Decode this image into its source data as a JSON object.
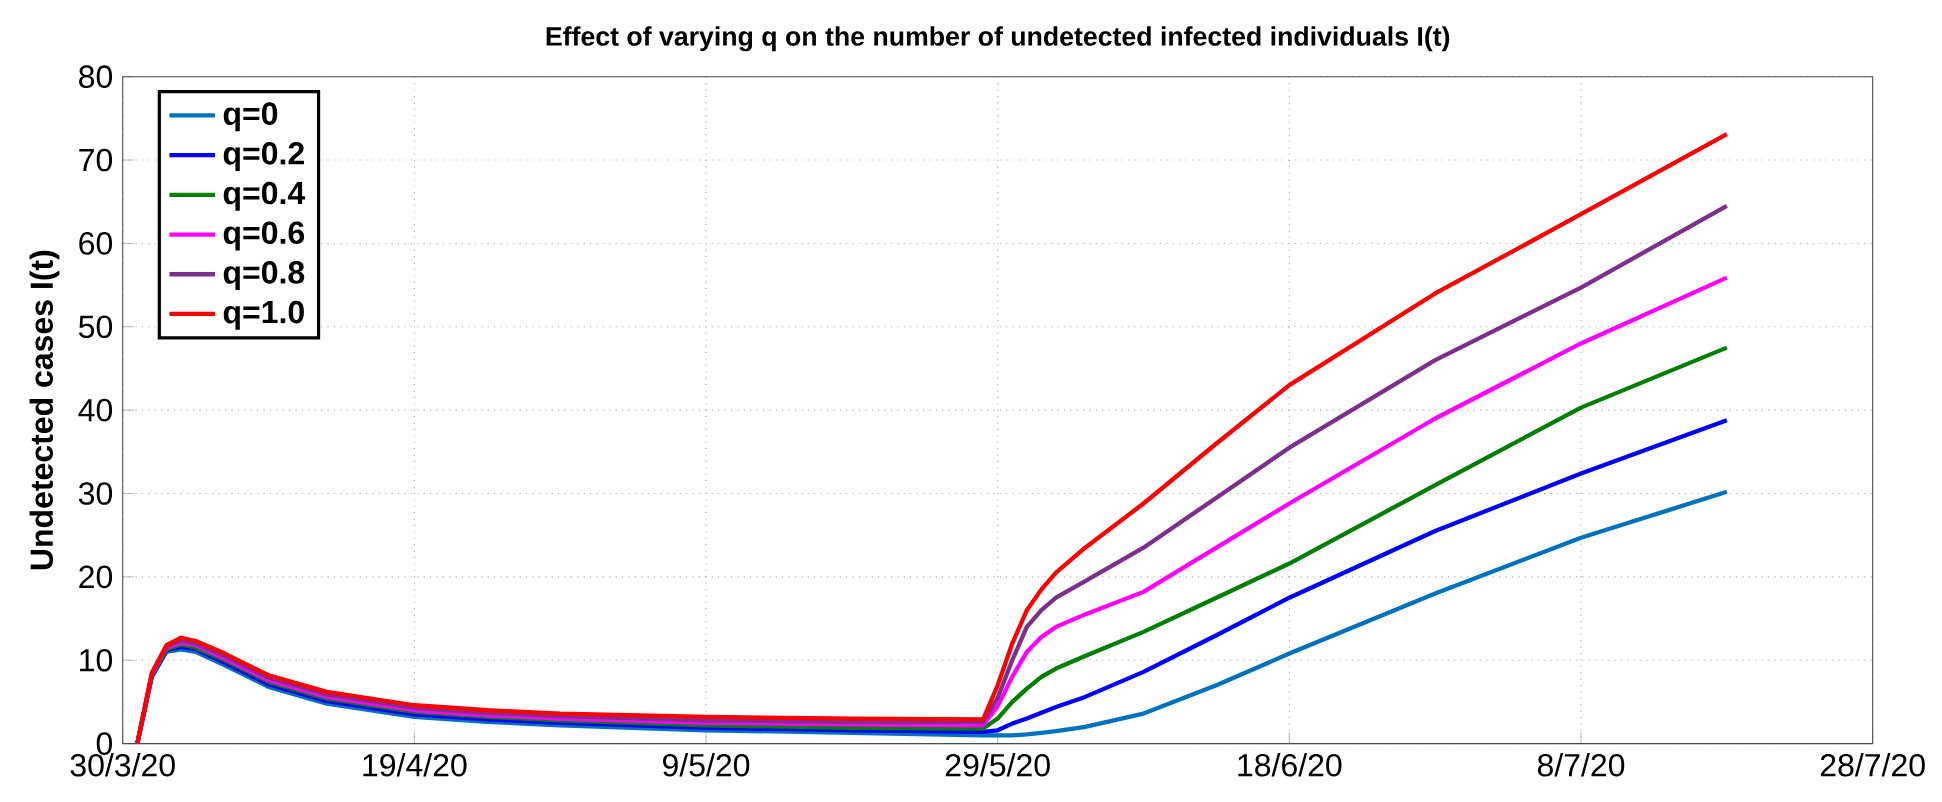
{
  "chart_data": {
    "type": "line",
    "title": "Effect of varying q on the number of undetected infected individuals I(t)",
    "ylabel": "Undetected cases I(t)",
    "x": [
      "2020-03-31",
      "2020-04-01",
      "2020-04-02",
      "2020-04-03",
      "2020-04-04",
      "2020-04-06",
      "2020-04-09",
      "2020-04-13",
      "2020-04-19",
      "2020-04-24",
      "2020-04-29",
      "2020-05-09",
      "2020-05-19",
      "2020-05-28",
      "2020-05-29",
      "2020-05-30",
      "2020-05-31",
      "2020-06-01",
      "2020-06-02",
      "2020-06-04",
      "2020-06-08",
      "2020-06-13",
      "2020-06-18",
      "2020-06-28",
      "2020-07-08",
      "2020-07-18"
    ],
    "series": [
      {
        "name": "q=0",
        "color": "#0072bd",
        "values": [
          0,
          8.0,
          11.0,
          11.3,
          11.0,
          9.4,
          6.8,
          4.8,
          3.2,
          2.6,
          2.2,
          1.6,
          1.3,
          1.0,
          1.0,
          1.0,
          1.1,
          1.3,
          1.5,
          2.0,
          3.6,
          7.0,
          10.8,
          18.0,
          24.7,
          30.2
        ]
      },
      {
        "name": "q=0.2",
        "color": "#0000ff",
        "values": [
          0,
          8.1,
          11.2,
          11.6,
          11.3,
          9.7,
          7.1,
          5.1,
          3.5,
          2.9,
          2.5,
          1.9,
          1.6,
          1.4,
          1.6,
          2.4,
          3.0,
          3.7,
          4.4,
          5.6,
          8.6,
          13.0,
          17.5,
          25.5,
          32.4,
          38.8
        ]
      },
      {
        "name": "q=0.4",
        "color": "#008000",
        "values": [
          0,
          8.2,
          11.3,
          11.9,
          11.5,
          10.0,
          7.4,
          5.4,
          3.8,
          3.2,
          2.8,
          2.2,
          1.9,
          1.8,
          3.0,
          5.0,
          6.6,
          8.0,
          9.0,
          10.5,
          13.4,
          17.5,
          21.6,
          31.0,
          40.3,
          47.5
        ]
      },
      {
        "name": "q=0.6",
        "color": "#ff00ff",
        "values": [
          0,
          8.3,
          11.5,
          12.1,
          11.8,
          10.2,
          7.6,
          5.6,
          4.0,
          3.4,
          3.0,
          2.5,
          2.3,
          2.2,
          4.5,
          8.0,
          11.0,
          12.8,
          14.0,
          15.5,
          18.2,
          23.5,
          28.8,
          39.0,
          48.0,
          55.9
        ]
      },
      {
        "name": "q=0.8",
        "color": "#7e2f8e",
        "values": [
          0,
          8.4,
          11.6,
          12.4,
          12.0,
          10.5,
          7.9,
          5.9,
          4.3,
          3.7,
          3.3,
          2.8,
          2.6,
          2.6,
          5.5,
          10.0,
          14.0,
          16.0,
          17.5,
          19.5,
          23.5,
          29.5,
          35.5,
          46.0,
          54.7,
          64.5
        ]
      },
      {
        "name": "q=1.0",
        "color": "#ff0000",
        "values": [
          0,
          8.5,
          11.8,
          12.7,
          12.3,
          10.8,
          8.2,
          6.2,
          4.6,
          4.0,
          3.6,
          3.2,
          3.0,
          2.9,
          7.0,
          12.0,
          16.0,
          18.5,
          20.5,
          23.5,
          28.8,
          36.0,
          43.0,
          54.0,
          63.5,
          73.1
        ]
      }
    ],
    "xlim": [
      "2020-03-30",
      "2020-07-28"
    ],
    "xticks": [
      {
        "value": "2020-03-30",
        "label": "30/3/20"
      },
      {
        "value": "2020-04-19",
        "label": "19/4/20"
      },
      {
        "value": "2020-05-09",
        "label": "9/5/20"
      },
      {
        "value": "2020-05-29",
        "label": "29/5/20"
      },
      {
        "value": "2020-06-18",
        "label": "18/6/20"
      },
      {
        "value": "2020-07-08",
        "label": "8/7/20"
      },
      {
        "value": "2020-07-28",
        "label": "28/7/20"
      }
    ],
    "ylim": [
      0,
      80
    ],
    "yticks": [
      0,
      10,
      20,
      30,
      40,
      50,
      60,
      70,
      80
    ],
    "grid": true,
    "legend": "top left",
    "marker": "none",
    "line_style": "solid"
  }
}
